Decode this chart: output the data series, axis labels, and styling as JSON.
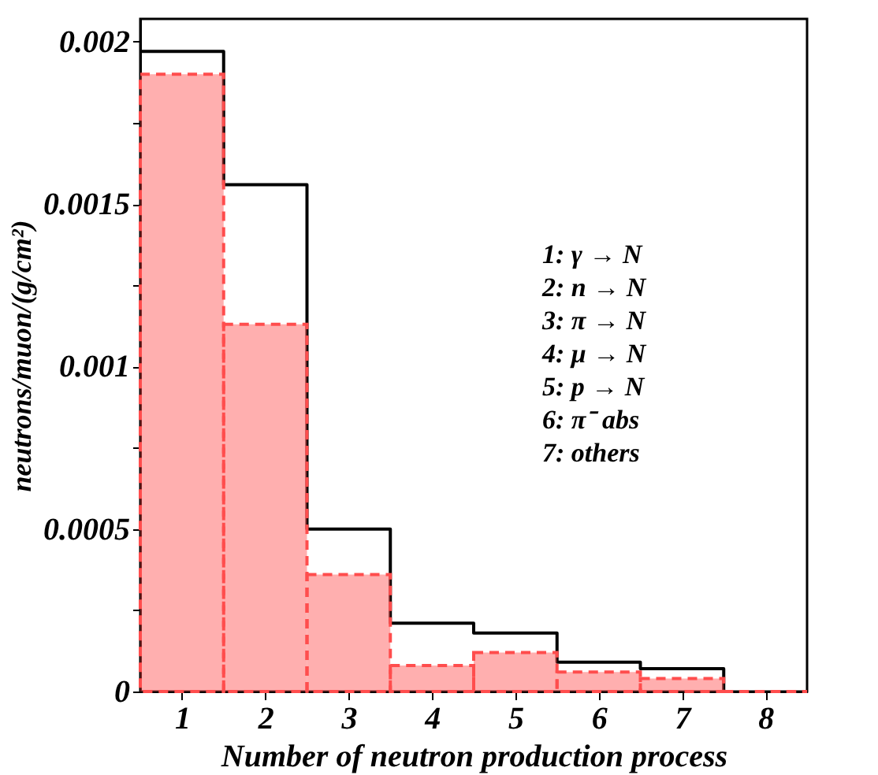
{
  "chart_data": {
    "type": "histogram",
    "xlabel": "Number of neutron production process",
    "ylabel": "neutrons/muon/(g/cm²)",
    "bins": [
      0.5,
      1.5,
      2.5,
      3.5,
      4.5,
      5.5,
      6.5,
      7.5,
      8.5
    ],
    "series": [
      {
        "type": "step",
        "color": "#000000",
        "line_style": "solid",
        "x": [
          0.5,
          1.5,
          2.5,
          3.5,
          4.5,
          5.5,
          6.5,
          7.5
        ],
        "values": [
          0.00197,
          0.00156,
          0.0005,
          0.00021,
          0.00018,
          9e-05,
          7e-05,
          0
        ]
      },
      {
        "type": "histogram",
        "color": "#ff4d4d",
        "line_style": "dashed",
        "values": [
          0.0019,
          0.00113,
          0.00036,
          8e-05,
          0.00012,
          6e-05,
          4e-05,
          0
        ]
      }
    ],
    "xlim": [
      0.5,
      8.5
    ],
    "xticks": [
      1,
      2,
      3,
      4,
      5,
      6,
      7,
      8
    ],
    "ylim": [
      0,
      0.00207
    ],
    "yticks": [
      0,
      {
        "value": 0.00025,
        "label": null
      },
      0.0005,
      {
        "value": 0.00075,
        "label": null
      },
      0.001,
      {
        "value": 0.00125,
        "label": null
      },
      0.0015,
      {
        "value": 0.00175,
        "label": null
      },
      0.002
    ],
    "annotations": [
      "1: γ → N",
      "2: n → N",
      "3: π → N",
      "4: μ → N",
      "5: p → N",
      "6: π⁻ abs",
      "7: others"
    ],
    "grid": false
  }
}
